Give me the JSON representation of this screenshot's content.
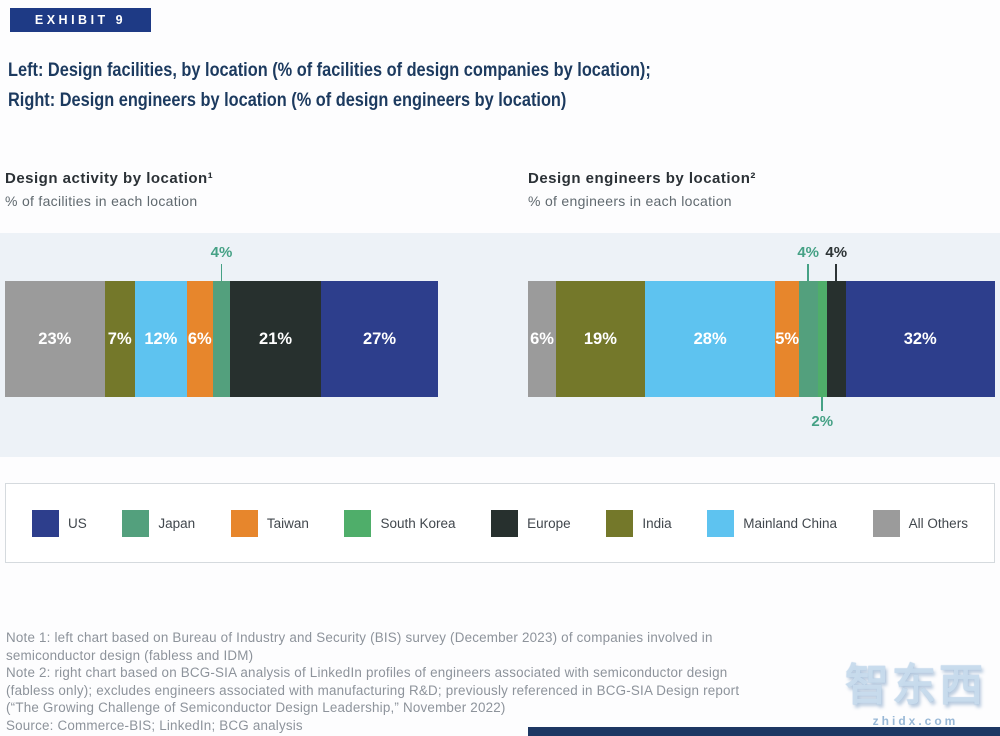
{
  "header": {
    "badge": "EXHIBIT 9",
    "title_line1": "Left: Design facilities, by location (% of facilities of design companies by location);",
    "title_line2": "Right: Design engineers by location (% of design engineers by location)"
  },
  "chart_data": [
    {
      "type": "bar",
      "orientation": "horizontal-stacked",
      "title": "Design activity by location¹",
      "subtitle": "% of facilities in each location",
      "unit": "%",
      "total": 100,
      "segments": [
        {
          "label": "All Others",
          "value": 23,
          "color": "#9b9b9b",
          "label_pos": "inside"
        },
        {
          "label": "India",
          "value": 7,
          "color": "#74782a",
          "label_pos": "inside"
        },
        {
          "label": "Mainland China",
          "value": 12,
          "color": "#5ec3f0",
          "label_pos": "inside"
        },
        {
          "label": "Taiwan",
          "value": 6,
          "color": "#e7862c",
          "label_pos": "inside"
        },
        {
          "label": "Japan",
          "value": 4,
          "color": "#53a07d",
          "label_pos": "above",
          "label_color": "#45a185"
        },
        {
          "label": "Europe",
          "value": 21,
          "color": "#27302e",
          "label_pos": "inside"
        },
        {
          "label": "US",
          "value": 27,
          "color": "#2d3e8c",
          "label_pos": "inside"
        }
      ]
    },
    {
      "type": "bar",
      "orientation": "horizontal-stacked",
      "title": "Design engineers by location²",
      "subtitle": "% of engineers in each location",
      "unit": "%",
      "total": 100,
      "segments": [
        {
          "label": "All Others",
          "value": 6,
          "color": "#9b9b9b",
          "label_pos": "inside"
        },
        {
          "label": "India",
          "value": 19,
          "color": "#74782a",
          "label_pos": "inside"
        },
        {
          "label": "Mainland China",
          "value": 28,
          "color": "#5ec3f0",
          "label_pos": "inside"
        },
        {
          "label": "Taiwan",
          "value": 5,
          "color": "#e7862c",
          "label_pos": "inside"
        },
        {
          "label": "Japan",
          "value": 4,
          "color": "#53a07d",
          "label_pos": "above",
          "label_color": "#45a185"
        },
        {
          "label": "South Korea",
          "value": 2,
          "color": "#4fae6a",
          "label_pos": "below",
          "label_color": "#45a185"
        },
        {
          "label": "Europe",
          "value": 4,
          "color": "#27302e",
          "label_pos": "above",
          "label_color": "#2d3436"
        },
        {
          "label": "US",
          "value": 32,
          "color": "#2d3e8c",
          "label_pos": "inside"
        }
      ]
    }
  ],
  "legend": {
    "items": [
      {
        "label": "US",
        "color": "#2d3e8c"
      },
      {
        "label": "Japan",
        "color": "#53a07d"
      },
      {
        "label": "Taiwan",
        "color": "#e7862c"
      },
      {
        "label": "South Korea",
        "color": "#4fae6a"
      },
      {
        "label": "Europe",
        "color": "#27302e"
      },
      {
        "label": "India",
        "color": "#74782a"
      },
      {
        "label": "Mainland China",
        "color": "#5ec3f0"
      },
      {
        "label": "All Others",
        "color": "#9b9b9b"
      }
    ]
  },
  "notes": {
    "lines": [
      "Note 1: left chart based on Bureau of Industry and Security (BIS) survey (December 2023) of companies involved in semiconductor design (fabless and IDM)",
      "Note 2: right chart based on BCG-SIA analysis of LinkedIn profiles of engineers associated with semiconductor design (fabless only); excludes engineers associated with manufacturing R&D; previously referenced in BCG-SIA Design report (“The Growing Challenge of Semiconductor Design Leadership,” November 2022)",
      "Source: Commerce-BIS; LinkedIn; BCG analysis"
    ]
  },
  "watermark": {
    "text": "智东西",
    "subtext": "zhidx.com"
  },
  "colors": {
    "accent_navy": "#1e3a85",
    "band": "#edf2f7",
    "callout_teal": "#45a185"
  }
}
